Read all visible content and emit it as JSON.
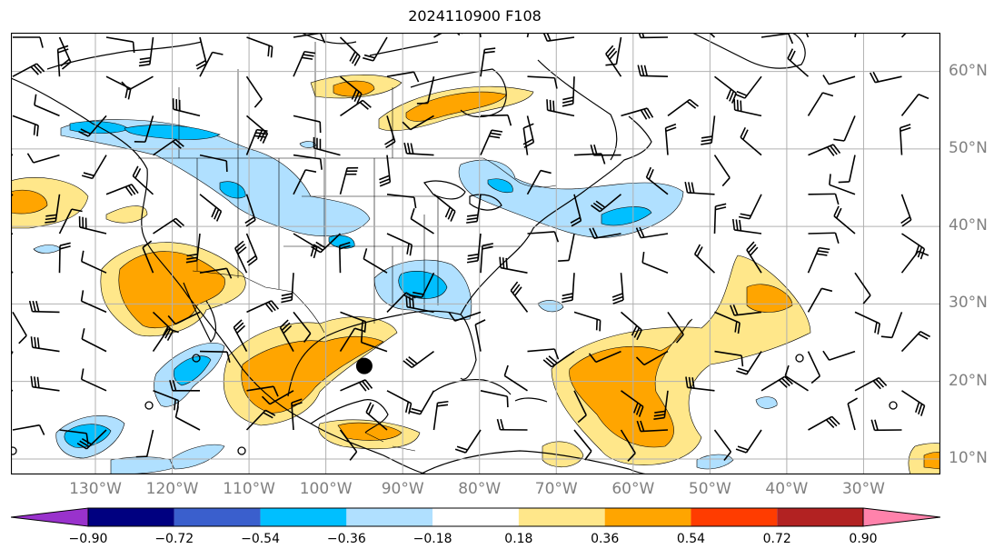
{
  "title": "2024110900 F108",
  "map": {
    "extent_lon": [
      -141,
      -20
    ],
    "extent_lat": [
      8,
      65
    ],
    "lat_labels": [
      {
        "lat": 60,
        "text": "60°N"
      },
      {
        "lat": 50,
        "text": "50°N"
      },
      {
        "lat": 40,
        "text": "40°N"
      },
      {
        "lat": 30,
        "text": "30°N"
      },
      {
        "lat": 20,
        "text": "20°N"
      },
      {
        "lat": 10,
        "text": "10°N"
      }
    ],
    "lon_labels": [
      {
        "lon": -130,
        "text": "130°W"
      },
      {
        "lon": -120,
        "text": "120°W"
      },
      {
        "lon": -110,
        "text": "110°W"
      },
      {
        "lon": -100,
        "text": "100°W"
      },
      {
        "lon": -90,
        "text": "90°W"
      },
      {
        "lon": -80,
        "text": "80°W"
      },
      {
        "lon": -70,
        "text": "70°W"
      },
      {
        "lon": -60,
        "text": "60°W"
      },
      {
        "lon": -50,
        "text": "50°W"
      },
      {
        "lon": -40,
        "text": "40°W"
      },
      {
        "lon": -30,
        "text": "30°W"
      }
    ],
    "storm_marker": {
      "lon": -95,
      "lat": 22
    }
  },
  "colorbar": {
    "labels": [
      "−0.90",
      "−0.72",
      "−0.54",
      "−0.36",
      "−0.18",
      "0.18",
      "0.36",
      "0.54",
      "0.72",
      "0.90"
    ],
    "colors": [
      "#9932cc",
      "#000080",
      "#3a5fcd",
      "#00bfff",
      "#b0e0ff",
      "#ffffff",
      "#ffe78a",
      "#ffa500",
      "#ff3c00",
      "#b22222",
      "#ff82ab"
    ]
  }
}
